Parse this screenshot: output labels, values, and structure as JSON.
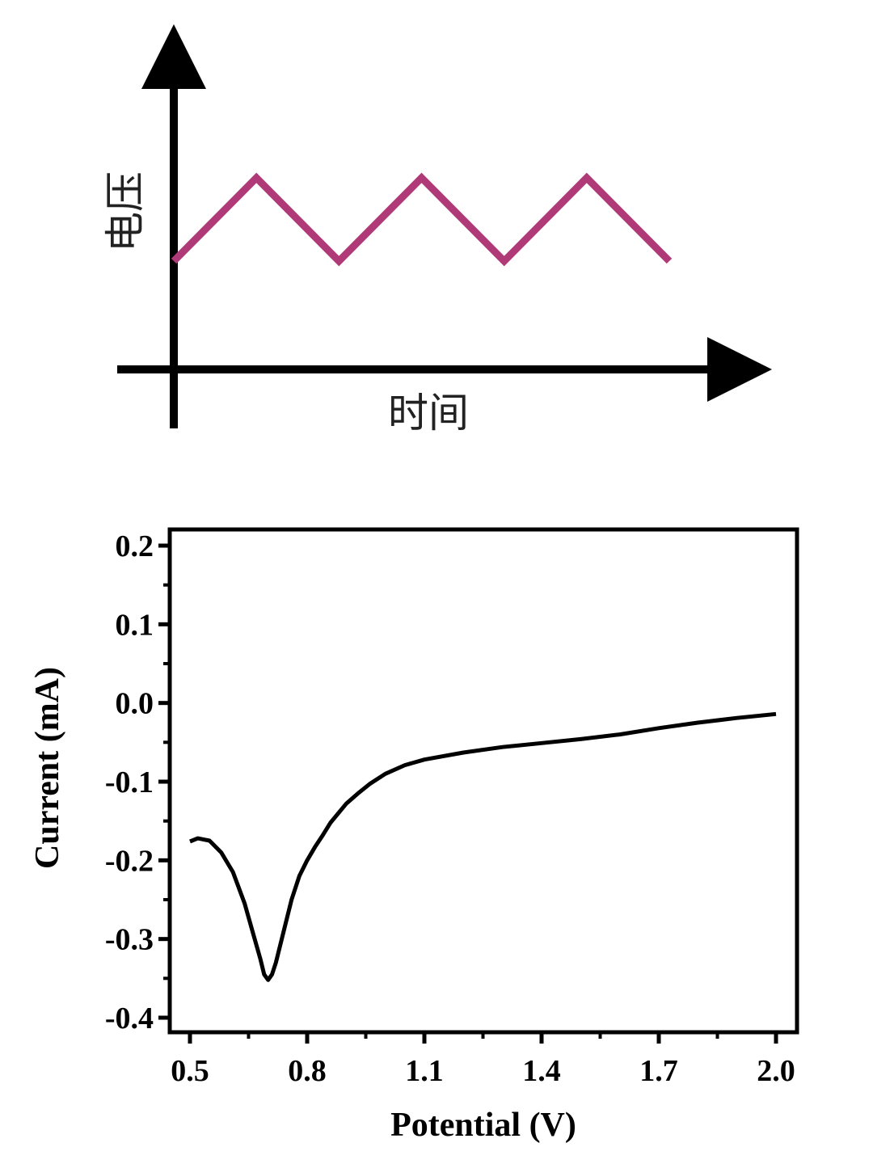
{
  "chart_data": [
    {
      "type": "line",
      "xlabel": "时间",
      "ylabel": "电压",
      "grid": false,
      "series": [
        {
          "color": "#b03a78",
          "x": [
            0,
            1,
            2,
            3,
            4,
            5,
            6
          ],
          "y": [
            0,
            1,
            0,
            1,
            0,
            1,
            0
          ]
        }
      ]
    },
    {
      "type": "line",
      "xlabel": "Potential (V)",
      "ylabel": "Current (mA)",
      "xlim": [
        0.45,
        2.05
      ],
      "ylim": [
        -0.42,
        0.22
      ],
      "xticks": [
        "0.5",
        "0.8",
        "1.1",
        "1.4",
        "1.7",
        "2.0"
      ],
      "yticks": [
        "0.2",
        "0.1",
        "0.0",
        "-0.1",
        "-0.2",
        "-0.3",
        "-0.4"
      ],
      "grid": false,
      "series": [
        {
          "color": "#000000",
          "x": [
            0.5,
            0.52,
            0.55,
            0.58,
            0.61,
            0.64,
            0.66,
            0.68,
            0.69,
            0.7,
            0.71,
            0.72,
            0.74,
            0.76,
            0.78,
            0.8,
            0.82,
            0.84,
            0.86,
            0.88,
            0.9,
            0.93,
            0.96,
            1.0,
            1.05,
            1.1,
            1.2,
            1.3,
            1.4,
            1.5,
            1.6,
            1.7,
            1.8,
            1.9,
            2.0
          ],
          "y": [
            -0.176,
            -0.172,
            -0.175,
            -0.19,
            -0.215,
            -0.255,
            -0.29,
            -0.325,
            -0.345,
            -0.352,
            -0.345,
            -0.33,
            -0.29,
            -0.25,
            -0.22,
            -0.2,
            -0.183,
            -0.168,
            -0.152,
            -0.14,
            -0.128,
            -0.115,
            -0.103,
            -0.09,
            -0.079,
            -0.072,
            -0.063,
            -0.056,
            -0.051,
            -0.046,
            -0.04,
            -0.032,
            -0.025,
            -0.019,
            -0.014
          ]
        }
      ]
    }
  ]
}
